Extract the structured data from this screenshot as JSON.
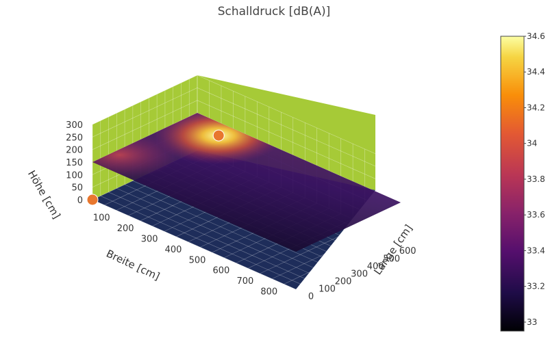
{
  "chart_data": {
    "type": "surface3d",
    "title": "Schalldruck [dB(A)]",
    "x_axis": {
      "label": "Breite [cm]",
      "ticks": [
        100,
        200,
        300,
        400,
        500,
        600,
        700,
        800
      ],
      "range": [
        0,
        850
      ]
    },
    "y_axis": {
      "label": "Länge [cm]",
      "ticks": [
        0,
        100,
        200,
        300,
        400,
        500,
        600
      ],
      "range": [
        0,
        650
      ]
    },
    "z_axis": {
      "label": "Höhe [cm]",
      "ticks": [
        0,
        50,
        100,
        150,
        200,
        250,
        300
      ],
      "range": [
        0,
        300
      ]
    },
    "surface": {
      "height": 150,
      "min_value": 32.95,
      "max_value": 34.6,
      "hotspot": {
        "x": 150,
        "y": 560,
        "value": 34.6
      },
      "secondary_hotspot": {
        "x": 10,
        "y": 90,
        "value": 33.9
      }
    },
    "sources": [
      {
        "x": 150,
        "y": 560,
        "z": 150
      },
      {
        "x": 0,
        "y": 0,
        "z": 0
      }
    ],
    "colorbar": {
      "colorscale": "inferno",
      "min": 32.95,
      "max": 34.6,
      "ticks": [
        33,
        33.2,
        33.4,
        33.6,
        33.8,
        34,
        34.2,
        34.4,
        34.6
      ],
      "tick_labels": [
        "33",
        "33.2",
        "33.4",
        "33.6",
        "33.8",
        "34",
        "34.2",
        "34.4",
        "34.6"
      ]
    },
    "colors": {
      "floor": "#1e2d5a",
      "walls": "#a6ca37",
      "source_marker": "#e8772e",
      "grid": "#ffffff"
    }
  }
}
